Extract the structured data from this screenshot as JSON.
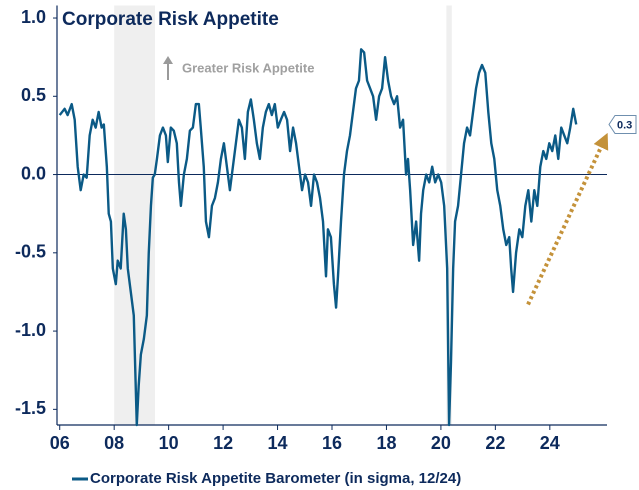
{
  "chart_data": {
    "type": "line",
    "title": "Corporate Risk Appetite",
    "annotation": "Greater Risk Appetite",
    "x": [
      2006.0,
      2006.18,
      2006.29,
      2006.44,
      2006.55,
      2006.66,
      2006.77,
      2006.88,
      2006.99,
      2007.1,
      2007.21,
      2007.32,
      2007.43,
      2007.54,
      2007.62,
      2007.73,
      2007.8,
      2007.88,
      2007.95,
      2008.06,
      2008.13,
      2008.24,
      2008.35,
      2008.43,
      2008.5,
      2008.61,
      2008.72,
      2008.83,
      2008.9,
      2008.98,
      2009.09,
      2009.2,
      2009.27,
      2009.35,
      2009.42,
      2009.49,
      2009.57,
      2009.68,
      2009.79,
      2009.9,
      2009.97,
      2010.08,
      2010.19,
      2010.3,
      2010.38,
      2010.45,
      2010.56,
      2010.67,
      2010.78,
      2010.89,
      2011.0,
      2011.11,
      2011.18,
      2011.29,
      2011.37,
      2011.48,
      2011.59,
      2011.7,
      2011.81,
      2011.92,
      2012.03,
      2012.14,
      2012.25,
      2012.36,
      2012.47,
      2012.58,
      2012.69,
      2012.8,
      2012.91,
      2013.02,
      2013.13,
      2013.24,
      2013.35,
      2013.46,
      2013.57,
      2013.68,
      2013.79,
      2013.9,
      2014.01,
      2014.12,
      2014.24,
      2014.35,
      2014.46,
      2014.57,
      2014.68,
      2014.79,
      2014.9,
      2015.01,
      2015.12,
      2015.23,
      2015.34,
      2015.45,
      2015.56,
      2015.67,
      2015.78,
      2015.85,
      2015.96,
      2016.07,
      2016.15,
      2016.22,
      2016.33,
      2016.44,
      2016.55,
      2016.66,
      2016.77,
      2016.88,
      2016.99,
      2017.07,
      2017.18,
      2017.29,
      2017.4,
      2017.51,
      2017.62,
      2017.73,
      2017.84,
      2017.95,
      2018.06,
      2018.17,
      2018.28,
      2018.39,
      2018.5,
      2018.61,
      2018.72,
      2018.79,
      2018.87,
      2018.98,
      2019.09,
      2019.2,
      2019.27,
      2019.35,
      2019.46,
      2019.57,
      2019.68,
      2019.79,
      2019.9,
      2020.01,
      2020.12,
      2020.23,
      2020.3,
      2020.37,
      2020.45,
      2020.52,
      2020.63,
      2020.74,
      2020.85,
      2020.96,
      2021.07,
      2021.18,
      2021.29,
      2021.4,
      2021.51,
      2021.63,
      2021.74,
      2021.85,
      2021.96,
      2022.07,
      2022.18,
      2022.29,
      2022.4,
      2022.51,
      2022.58,
      2022.65,
      2022.76,
      2022.88,
      2022.99,
      2023.1,
      2023.21,
      2023.32,
      2023.43,
      2023.54,
      2023.65,
      2023.76,
      2023.87,
      2023.98,
      2024.09,
      2024.2,
      2024.31,
      2024.42,
      2024.53,
      2024.64,
      2024.75,
      2024.86,
      2024.97
    ],
    "series": [
      {
        "name": "Corporate Risk Appetite Barometer (in sigma, 12/24)",
        "color": "#0b5a86",
        "end_label": "0.3",
        "values": [
          0.38,
          0.42,
          0.38,
          0.45,
          0.35,
          0.05,
          -0.1,
          0.0,
          -0.02,
          0.25,
          0.35,
          0.3,
          0.4,
          0.3,
          0.32,
          0.05,
          -0.25,
          -0.3,
          -0.6,
          -0.7,
          -0.55,
          -0.6,
          -0.25,
          -0.35,
          -0.6,
          -0.75,
          -0.9,
          -1.6,
          -1.35,
          -1.15,
          -1.05,
          -0.9,
          -0.5,
          -0.2,
          -0.02,
          0.0,
          0.1,
          0.25,
          0.3,
          0.25,
          0.08,
          0.3,
          0.28,
          0.2,
          -0.05,
          -0.2,
          0.0,
          0.1,
          0.28,
          0.3,
          0.45,
          0.45,
          0.3,
          0.05,
          -0.3,
          -0.4,
          -0.2,
          -0.15,
          -0.05,
          0.1,
          0.2,
          0.05,
          -0.1,
          0.05,
          0.2,
          0.35,
          0.3,
          0.1,
          0.4,
          0.48,
          0.35,
          0.2,
          0.1,
          0.3,
          0.4,
          0.45,
          0.38,
          0.45,
          0.3,
          0.35,
          0.4,
          0.35,
          0.15,
          0.3,
          0.2,
          0.05,
          -0.1,
          0.0,
          -0.05,
          -0.2,
          0.0,
          -0.05,
          -0.15,
          -0.3,
          -0.65,
          -0.35,
          -0.4,
          -0.7,
          -0.85,
          -0.65,
          -0.3,
          0.0,
          0.15,
          0.25,
          0.4,
          0.55,
          0.6,
          0.8,
          0.78,
          0.6,
          0.55,
          0.5,
          0.35,
          0.5,
          0.55,
          0.75,
          0.6,
          0.5,
          0.45,
          0.5,
          0.3,
          0.35,
          0.0,
          0.1,
          -0.1,
          -0.45,
          -0.3,
          -0.55,
          -0.25,
          -0.1,
          0.0,
          -0.05,
          0.05,
          -0.05,
          0.0,
          -0.05,
          -0.2,
          -0.6,
          -1.6,
          -1.2,
          -0.6,
          -0.3,
          -0.2,
          0.0,
          0.2,
          0.3,
          0.25,
          0.4,
          0.55,
          0.65,
          0.7,
          0.65,
          0.4,
          0.2,
          0.1,
          -0.1,
          -0.2,
          -0.35,
          -0.45,
          -0.4,
          -0.6,
          -0.75,
          -0.5,
          -0.35,
          -0.4,
          -0.2,
          -0.1,
          -0.3,
          -0.1,
          -0.2,
          0.05,
          0.15,
          0.1,
          0.2,
          0.15,
          0.25,
          0.1,
          0.3,
          0.25,
          0.2,
          0.3,
          0.42,
          0.32
        ]
      }
    ],
    "shaded_periods": [
      [
        2008.0,
        2009.5
      ],
      [
        2020.2,
        2020.4
      ]
    ],
    "shade_color": "#efefef",
    "trend_arrow": {
      "x": [
        2023.2,
        2026.0
      ],
      "y": [
        -0.83,
        0.22
      ],
      "color": "#c4923a"
    },
    "xlim": [
      2005.9,
      2026.1
    ],
    "xticks": [
      {
        "value": 2006,
        "label": "06"
      },
      {
        "value": 2008,
        "label": "08"
      },
      {
        "value": 2010,
        "label": "10"
      },
      {
        "value": 2012,
        "label": "12"
      },
      {
        "value": 2014,
        "label": "14"
      },
      {
        "value": 2016,
        "label": "16"
      },
      {
        "value": 2018,
        "label": "18"
      },
      {
        "value": 2020,
        "label": "20"
      },
      {
        "value": 2022,
        "label": "22"
      },
      {
        "value": 2024,
        "label": "24"
      }
    ],
    "ylim": [
      -1.6,
      1.08
    ],
    "yticks": [
      {
        "value": 1,
        "label": "1.0"
      },
      0.5,
      {
        "value": 0,
        "label": "0.0"
      },
      -0.5,
      {
        "value": -1,
        "label": "-1.0"
      },
      -1.5
    ],
    "zero_line": true,
    "legend": "bottom"
  }
}
